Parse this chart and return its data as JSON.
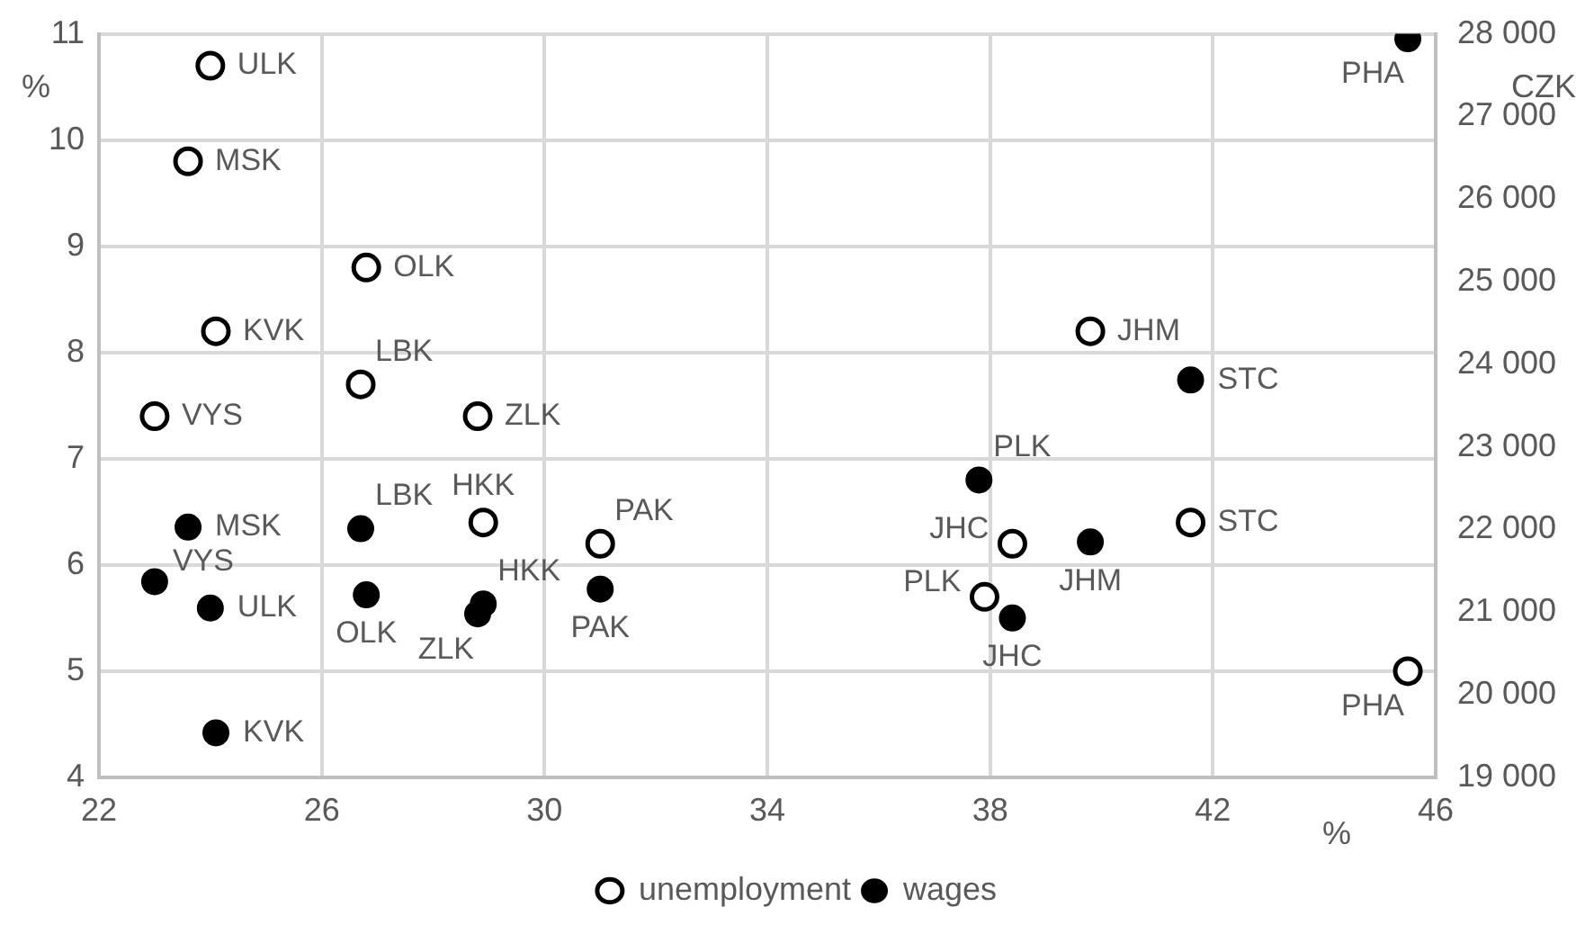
{
  "chart_data": {
    "type": "scatter",
    "xlabel": "%",
    "ylabel": "%",
    "y2label": "CZK",
    "xlim": [
      22,
      46
    ],
    "xticks": [
      22,
      26,
      30,
      34,
      38,
      42,
      46
    ],
    "ylim": [
      4,
      11
    ],
    "yticks": [
      4,
      5,
      6,
      7,
      8,
      9,
      10,
      11
    ],
    "y2lim": [
      19000,
      28000
    ],
    "y2ticks": [
      {
        "value": 19000,
        "label": "19 000"
      },
      {
        "value": 20000,
        "label": "20 000"
      },
      {
        "value": 21000,
        "label": "21 000"
      },
      {
        "value": 22000,
        "label": "22 000"
      },
      {
        "value": 23000,
        "label": "23 000"
      },
      {
        "value": 24000,
        "label": "24 000"
      },
      {
        "value": 25000,
        "label": "25 000"
      },
      {
        "value": 26000,
        "label": "26 000"
      },
      {
        "value": 27000,
        "label": "27 000"
      },
      {
        "value": 28000,
        "label": "28 000"
      }
    ],
    "grid": true,
    "legend": "bottom",
    "marker": "circle",
    "series": [
      {
        "name": "unemployment",
        "color": "#000000",
        "axis": "y",
        "x": [
          24.0,
          23.6,
          26.8,
          24.1,
          26.7,
          28.8,
          23.0,
          28.9,
          31.0,
          39.8,
          38.4,
          41.6,
          37.9,
          45.5
        ],
        "values": [
          10.7,
          9.8,
          8.8,
          8.2,
          7.7,
          7.4,
          7.4,
          6.4,
          6.2,
          8.2,
          6.2,
          6.4,
          5.7,
          5.0
        ],
        "value_labels": [
          "ULK",
          "MSK",
          "OLK",
          "KVK",
          "LBK",
          "ZLK",
          "VYS",
          "HKK",
          "PAK",
          "JHM",
          "JHC",
          "STC",
          "PLK",
          "PHA"
        ]
      },
      {
        "name": "wages",
        "color": "#000000",
        "axis": "y2",
        "x": [
          23.6,
          26.7,
          23.0,
          24.0,
          26.8,
          28.8,
          28.9,
          31.0,
          24.1,
          45.5,
          41.6,
          37.8,
          39.8,
          38.4
        ],
        "values": [
          22030,
          22010,
          21370,
          21050,
          21210,
          20980,
          21100,
          21280,
          19540,
          27940,
          23810,
          22600,
          21850,
          20930
        ],
        "value_labels": [
          "MSK",
          "LBK",
          "VYS",
          "ULK",
          "OLK",
          "ZLK",
          "HKK",
          "PAK",
          "KVK",
          "PHA",
          "STC",
          "PLK",
          "JHM",
          "JHC"
        ]
      }
    ]
  }
}
